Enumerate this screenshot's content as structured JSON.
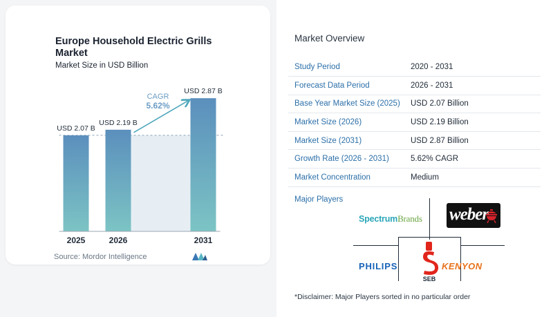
{
  "chart_data": {
    "type": "bar",
    "title": "Europe Household Electric Grills Market",
    "subtitle": "Market Size in USD Billion",
    "categories": [
      "2025",
      "2026",
      "2031"
    ],
    "values": [
      2.07,
      2.19,
      2.87
    ],
    "data_labels": [
      "USD 2.07 B",
      "USD 2.19 B",
      "USD 2.87 B"
    ],
    "cagr_label": "CAGR",
    "cagr_value": "5.62%",
    "ylim": [
      0,
      3.2
    ],
    "grid": false,
    "colors": {
      "bar_top": "#5b8fbd",
      "bar_bottom": "#7cc4c4",
      "band": "#e6eef4",
      "arrow": "#4ea7bc",
      "cagr_text": "#6a9cc4"
    }
  },
  "source": "Source: Mordor Intelligence",
  "overview": {
    "title": "Market Overview",
    "rows": [
      {
        "label": "Study Period",
        "value": "2020 - 2031"
      },
      {
        "label": "Forecast Data Period",
        "value": "2026 - 2031"
      },
      {
        "label": "Base Year Market Size (2025)",
        "value": "USD 2.07 Billion"
      },
      {
        "label": "Market Size (2026)",
        "value": "USD 2.19 Billion"
      },
      {
        "label": "Market Size (2031)",
        "value": "USD 2.87 Billion"
      },
      {
        "label": "Growth Rate (2026 - 2031)",
        "value": "5.62% CAGR"
      },
      {
        "label": "Market Concentration",
        "value": "Medium"
      }
    ]
  },
  "major_players": {
    "title": "Major Players",
    "logos": {
      "spectrum_a": "Spectrum",
      "spectrum_b": "Brands",
      "weber": "weber",
      "philips": "PHILIPS",
      "seb": "SEB",
      "kenyon": "KENYON"
    }
  },
  "disclaimer": "*Disclaimer: Major Players sorted in no particular order"
}
